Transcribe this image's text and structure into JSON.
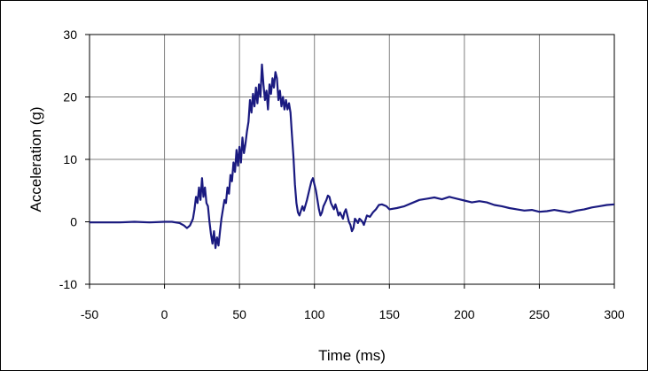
{
  "chart_data": {
    "type": "line",
    "title": "",
    "xlabel": "Time (ms)",
    "ylabel": "Acceleration (g)",
    "xlim": [
      -50,
      300
    ],
    "ylim": [
      -10,
      30
    ],
    "xticks": [
      -50,
      0,
      50,
      100,
      150,
      200,
      250,
      300
    ],
    "yticks": [
      -10,
      0,
      10,
      20,
      30
    ],
    "grid": true,
    "legend": "none",
    "colors": {
      "line": "#1a1a80",
      "grid": "#808080",
      "axis": "#000000"
    },
    "series": [
      {
        "x": [
          -50,
          -40,
          -30,
          -20,
          -10,
          0,
          5,
          10,
          13,
          15,
          17,
          19,
          20,
          21,
          22,
          23,
          24,
          25,
          26,
          27,
          28,
          29,
          30,
          31,
          32,
          33,
          34,
          35,
          36,
          37,
          38,
          39,
          40,
          41,
          42,
          43,
          44,
          45,
          46,
          47,
          48,
          49,
          50,
          51,
          52,
          53,
          54,
          55,
          56,
          57,
          58,
          59,
          60,
          61,
          62,
          63,
          64,
          65,
          66,
          67,
          68,
          69,
          70,
          71,
          72,
          73,
          74,
          75,
          76,
          77,
          78,
          79,
          80,
          81,
          82,
          83,
          84,
          85,
          86,
          87,
          88,
          89,
          90,
          91,
          92,
          93,
          95,
          97,
          98,
          99,
          100,
          101,
          102,
          103,
          104,
          105,
          106,
          107,
          108,
          109,
          110,
          111,
          112,
          113,
          114,
          115,
          116,
          117,
          118,
          119,
          120,
          121,
          122,
          123,
          124,
          125,
          126,
          127,
          128,
          129,
          130,
          131,
          132,
          133,
          135,
          137,
          139,
          141,
          143,
          145,
          148,
          150,
          155,
          160,
          165,
          170,
          175,
          180,
          185,
          190,
          195,
          200,
          205,
          210,
          215,
          220,
          225,
          230,
          235,
          240,
          245,
          250,
          255,
          260,
          265,
          270,
          275,
          280,
          285,
          290,
          295,
          300
        ],
        "y": [
          -0.1,
          -0.1,
          -0.1,
          0,
          -0.1,
          0,
          0,
          -0.2,
          -0.6,
          -1.0,
          -0.6,
          0.5,
          2.0,
          4.0,
          3.0,
          5.5,
          3.5,
          7.0,
          4.0,
          5.5,
          3.0,
          2.5,
          0,
          -2.0,
          -3.5,
          -1.5,
          -4.2,
          -2.5,
          -3.8,
          -1.5,
          0.5,
          2.0,
          3.5,
          3.0,
          5.5,
          4.5,
          7.5,
          6.5,
          9.5,
          8.0,
          11.5,
          9.0,
          12.0,
          9.5,
          13.5,
          11.0,
          12.5,
          14.5,
          16.0,
          19.5,
          17.5,
          20.5,
          18.5,
          21.5,
          19.0,
          22.0,
          20.0,
          25.2,
          22.0,
          19.5,
          21.0,
          18.0,
          22.0,
          20.5,
          23.0,
          21.5,
          24.0,
          23.0,
          19.5,
          21.0,
          18.5,
          20.0,
          18.0,
          19.5,
          18.0,
          19.0,
          17.5,
          14.0,
          10.5,
          6.0,
          3.0,
          1.5,
          1.0,
          1.8,
          2.5,
          1.8,
          3.5,
          5.5,
          6.5,
          7.0,
          6.0,
          5.0,
          3.5,
          2.0,
          1.0,
          1.5,
          2.5,
          3.0,
          3.5,
          4.2,
          4.0,
          3.0,
          2.5,
          2.0,
          2.8,
          2.0,
          1.0,
          1.5,
          1.0,
          0.5,
          1.5,
          2.0,
          1.0,
          0,
          -0.5,
          -1.5,
          -1.0,
          0.5,
          0.2,
          -0.2,
          0.5,
          0.3,
          0,
          -0.5,
          1.0,
          0.8,
          1.5,
          2.0,
          2.7,
          2.8,
          2.5,
          2.0,
          2.2,
          2.5,
          3.0,
          3.5,
          3.7,
          3.9,
          3.6,
          4.0,
          3.7,
          3.4,
          3.1,
          3.3,
          3.1,
          2.7,
          2.5,
          2.2,
          2.0,
          1.8,
          1.9,
          1.6,
          1.7,
          1.9,
          1.7,
          1.5,
          1.8,
          2.0,
          2.3,
          2.5,
          2.7,
          2.8
        ]
      }
    ]
  }
}
